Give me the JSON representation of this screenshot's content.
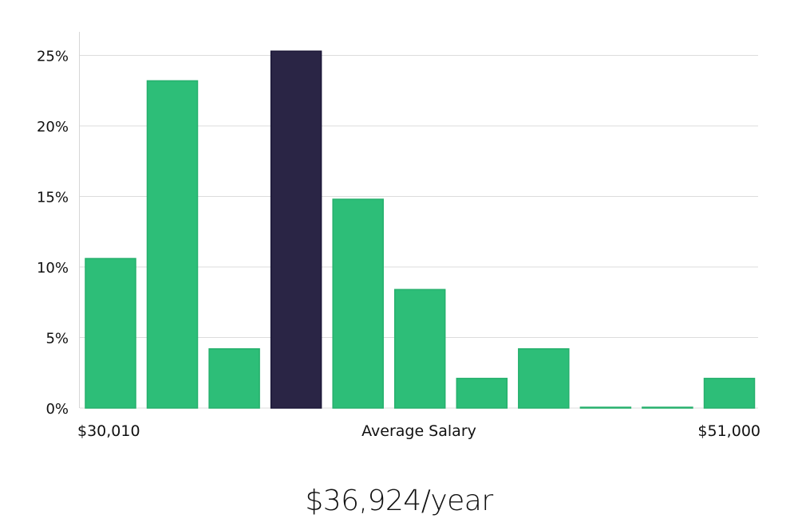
{
  "chart_data": {
    "type": "bar",
    "title": "",
    "xlabel": "Average Salary",
    "ylabel": "",
    "x_min_label": "$30,010",
    "x_max_label": "$51,000",
    "ylim": [
      0,
      26
    ],
    "y_ticks": [
      0,
      5,
      10,
      15,
      20,
      25
    ],
    "y_tick_labels": [
      "0%",
      "5%",
      "10%",
      "15%",
      "20%",
      "25%"
    ],
    "grid": true,
    "values": [
      10.6,
      23.2,
      4.2,
      25.3,
      14.8,
      8.4,
      2.1,
      4.2,
      0,
      0,
      2.1
    ],
    "highlight_index": 3,
    "colors": {
      "bar": "#2dbe78",
      "highlight": "#2a2545",
      "grid": "#dcdcdc",
      "axis": "#cfcfcf"
    }
  },
  "summary": {
    "salary": "$36,924/year"
  }
}
